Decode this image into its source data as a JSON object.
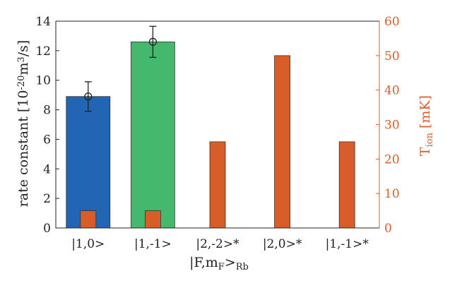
{
  "chart_data": {
    "type": "bar",
    "title": "",
    "xlabel": {
      "main": "|F,m",
      "sub1": "F",
      "mid": ">",
      "sub2": "Rb"
    },
    "ylabel_left": {
      "text": "rate constant [10",
      "sup1": "-20",
      "mid": "m",
      "sup2": "3",
      "end": "/s]"
    },
    "ylabel_right": {
      "main": "T",
      "sub": "ion",
      "end": " [mK]"
    },
    "categories": [
      "|1,0>",
      "|1,-1>",
      "|2,-2>*",
      "|2,0>*",
      "|1,-1>*"
    ],
    "left_axis": {
      "ylim": [
        0,
        14
      ],
      "ticks": [
        "0",
        "2",
        "4",
        "6",
        "8",
        "10",
        "12",
        "14"
      ]
    },
    "right_axis": {
      "ylim": [
        0,
        60
      ],
      "ticks": [
        "0",
        "10",
        "20",
        "30",
        "40",
        "50",
        "60"
      ]
    },
    "series": [
      {
        "axis": "left",
        "values": [
          8.9,
          12.6,
          null,
          null,
          null
        ],
        "errors": [
          1.0,
          1.05,
          null,
          null,
          null
        ],
        "bar_colors": [
          "#2166b4",
          "#44b86c",
          "",
          "",
          ""
        ]
      },
      {
        "axis": "right",
        "values": [
          5,
          5,
          25,
          50,
          25
        ],
        "color": "#d95d27"
      }
    ],
    "colors": {
      "axis_left": "#222222",
      "axis_right": "#d95d27",
      "frame": "#222222"
    },
    "grid": false,
    "legend": "none"
  }
}
